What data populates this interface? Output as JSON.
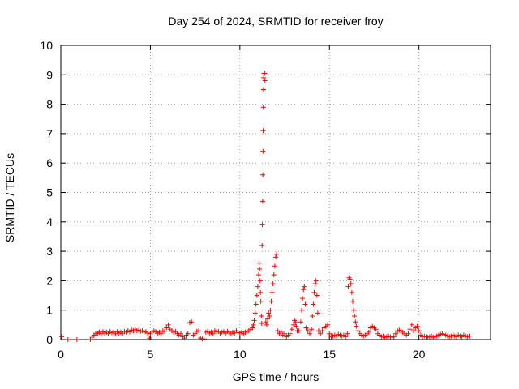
{
  "chart_data": {
    "type": "scatter",
    "title": "Day 254 of 2024, SRMTID for receiver froy",
    "xlabel": "GPS time / hours",
    "ylabel": "SRMTID / TECUs",
    "xlim": [
      0,
      24
    ],
    "ylim": [
      0,
      10
    ],
    "xticks": [
      0,
      5,
      10,
      15,
      20
    ],
    "yticks": [
      0,
      1,
      2,
      3,
      4,
      5,
      6,
      7,
      8,
      9,
      10
    ],
    "grid": true,
    "marker": "+",
    "color": "#ff0000",
    "series": [
      {
        "name": "SRMTID",
        "points": [
          [
            0.05,
            0.1
          ],
          [
            0.4,
            0.0
          ],
          [
            0.9,
            0.0
          ],
          [
            1.65,
            0.0
          ],
          [
            1.75,
            0.08
          ],
          [
            1.85,
            0.15
          ],
          [
            1.95,
            0.2
          ],
          [
            2.05,
            0.22
          ],
          [
            2.15,
            0.25
          ],
          [
            2.25,
            0.2
          ],
          [
            2.35,
            0.27
          ],
          [
            2.45,
            0.22
          ],
          [
            2.55,
            0.25
          ],
          [
            2.65,
            0.2
          ],
          [
            2.75,
            0.28
          ],
          [
            2.85,
            0.23
          ],
          [
            2.95,
            0.25
          ],
          [
            3.05,
            0.2
          ],
          [
            3.15,
            0.27
          ],
          [
            3.25,
            0.22
          ],
          [
            3.35,
            0.25
          ],
          [
            3.45,
            0.2
          ],
          [
            3.55,
            0.28
          ],
          [
            3.65,
            0.25
          ],
          [
            3.75,
            0.3
          ],
          [
            3.85,
            0.26
          ],
          [
            3.95,
            0.32
          ],
          [
            4.05,
            0.3
          ],
          [
            4.15,
            0.35
          ],
          [
            4.25,
            0.3
          ],
          [
            4.35,
            0.32
          ],
          [
            4.45,
            0.28
          ],
          [
            4.55,
            0.3
          ],
          [
            4.65,
            0.25
          ],
          [
            4.75,
            0.27
          ],
          [
            4.85,
            0.22
          ],
          [
            4.95,
            0.05
          ],
          [
            5.0,
            0.2
          ],
          [
            5.1,
            0.25
          ],
          [
            5.2,
            0.3
          ],
          [
            5.3,
            0.27
          ],
          [
            5.4,
            0.22
          ],
          [
            5.5,
            0.25
          ],
          [
            5.6,
            0.2
          ],
          [
            5.7,
            0.3
          ],
          [
            5.8,
            0.28
          ],
          [
            5.9,
            0.4
          ],
          [
            6.0,
            0.5
          ],
          [
            6.1,
            0.35
          ],
          [
            6.2,
            0.3
          ],
          [
            6.3,
            0.25
          ],
          [
            6.4,
            0.28
          ],
          [
            6.5,
            0.2
          ],
          [
            6.6,
            0.15
          ],
          [
            6.7,
            0.2
          ],
          [
            6.8,
            0.1
          ],
          [
            6.9,
            0.05
          ],
          [
            7.0,
            0.15
          ],
          [
            7.1,
            0.2
          ],
          [
            7.2,
            0.58
          ],
          [
            7.3,
            0.6
          ],
          [
            7.4,
            0.15
          ],
          [
            7.5,
            0.2
          ],
          [
            7.6,
            0.28
          ],
          [
            7.7,
            0.3
          ],
          [
            7.8,
            0.05
          ],
          [
            7.9,
            0.02
          ],
          [
            8.0,
            0.02
          ],
          [
            8.1,
            0.25
          ],
          [
            8.2,
            0.28
          ],
          [
            8.3,
            0.22
          ],
          [
            8.4,
            0.25
          ],
          [
            8.5,
            0.2
          ],
          [
            8.6,
            0.3
          ],
          [
            8.7,
            0.26
          ],
          [
            8.8,
            0.28
          ],
          [
            8.9,
            0.22
          ],
          [
            9.0,
            0.25
          ],
          [
            9.1,
            0.27
          ],
          [
            9.2,
            0.22
          ],
          [
            9.3,
            0.28
          ],
          [
            9.4,
            0.25
          ],
          [
            9.5,
            0.2
          ],
          [
            9.6,
            0.25
          ],
          [
            9.7,
            0.22
          ],
          [
            9.8,
            0.3
          ],
          [
            9.9,
            0.24
          ],
          [
            10.0,
            0.22
          ],
          [
            10.1,
            0.25
          ],
          [
            10.2,
            0.2
          ],
          [
            10.3,
            0.25
          ],
          [
            10.4,
            0.28
          ],
          [
            10.5,
            0.3
          ],
          [
            10.6,
            0.35
          ],
          [
            10.7,
            0.4
          ],
          [
            10.75,
            0.5
          ],
          [
            10.8,
            0.65
          ],
          [
            10.85,
            0.9
          ],
          [
            10.9,
            1.2
          ],
          [
            10.95,
            1.5
          ],
          [
            11.0,
            1.8
          ],
          [
            11.05,
            2.2
          ],
          [
            11.08,
            2.6
          ],
          [
            11.1,
            2.4
          ],
          [
            11.13,
            2.0
          ],
          [
            11.15,
            1.6
          ],
          [
            11.17,
            1.3
          ],
          [
            11.2,
            0.8
          ],
          [
            11.22,
            0.55
          ],
          [
            11.24,
            3.2
          ],
          [
            11.25,
            3.9
          ],
          [
            11.27,
            4.7
          ],
          [
            11.28,
            5.6
          ],
          [
            11.29,
            6.4
          ],
          [
            11.3,
            7.1
          ],
          [
            11.31,
            7.9
          ],
          [
            11.32,
            8.5
          ],
          [
            11.33,
            8.9
          ],
          [
            11.35,
            9.05
          ],
          [
            11.38,
            9.05
          ],
          [
            11.4,
            8.8
          ],
          [
            11.45,
            0.6
          ],
          [
            11.5,
            0.5
          ],
          [
            11.55,
            0.7
          ],
          [
            11.6,
            0.9
          ],
          [
            11.65,
            0.8
          ],
          [
            11.7,
            1.0
          ],
          [
            11.75,
            1.3
          ],
          [
            11.8,
            1.6
          ],
          [
            11.85,
            1.9
          ],
          [
            11.9,
            2.2
          ],
          [
            11.95,
            2.5
          ],
          [
            12.0,
            2.8
          ],
          [
            12.05,
            2.9
          ],
          [
            12.1,
            0.3
          ],
          [
            12.2,
            0.2
          ],
          [
            12.3,
            0.25
          ],
          [
            12.4,
            0.15
          ],
          [
            12.5,
            0.2
          ],
          [
            12.6,
            0.1
          ],
          [
            12.7,
            0.15
          ],
          [
            12.8,
            0.2
          ],
          [
            12.9,
            0.35
          ],
          [
            13.0,
            0.5
          ],
          [
            13.05,
            0.65
          ],
          [
            13.1,
            0.6
          ],
          [
            13.15,
            0.45
          ],
          [
            13.2,
            0.3
          ],
          [
            13.3,
            0.3
          ],
          [
            13.4,
            0.6
          ],
          [
            13.45,
            1.0
          ],
          [
            13.5,
            1.4
          ],
          [
            13.55,
            1.7
          ],
          [
            13.6,
            1.8
          ],
          [
            13.65,
            1.2
          ],
          [
            13.7,
            0.4
          ],
          [
            13.8,
            0.3
          ],
          [
            13.9,
            0.2
          ],
          [
            14.0,
            0.35
          ],
          [
            14.05,
            0.8
          ],
          [
            14.1,
            1.2
          ],
          [
            14.15,
            1.6
          ],
          [
            14.2,
            1.9
          ],
          [
            14.25,
            2.0
          ],
          [
            14.3,
            1.5
          ],
          [
            14.35,
            0.9
          ],
          [
            14.4,
            0.3
          ],
          [
            14.5,
            0.2
          ],
          [
            14.6,
            0.3
          ],
          [
            14.7,
            0.4
          ],
          [
            14.8,
            0.45
          ],
          [
            14.9,
            0.5
          ],
          [
            15.0,
            0.2
          ],
          [
            15.1,
            0.1
          ],
          [
            15.2,
            0.12
          ],
          [
            15.3,
            0.15
          ],
          [
            15.4,
            0.12
          ],
          [
            15.5,
            0.18
          ],
          [
            15.6,
            0.15
          ],
          [
            15.7,
            0.12
          ],
          [
            15.8,
            0.15
          ],
          [
            15.9,
            0.1
          ],
          [
            16.0,
            0.2
          ],
          [
            16.05,
            1.8
          ],
          [
            16.1,
            2.1
          ],
          [
            16.15,
            2.05
          ],
          [
            16.2,
            1.9
          ],
          [
            16.25,
            1.6
          ],
          [
            16.3,
            1.3
          ],
          [
            16.35,
            1.0
          ],
          [
            16.4,
            0.8
          ],
          [
            16.45,
            0.6
          ],
          [
            16.5,
            0.45
          ],
          [
            16.6,
            0.3
          ],
          [
            16.7,
            0.2
          ],
          [
            16.8,
            0.15
          ],
          [
            16.9,
            0.12
          ],
          [
            17.0,
            0.15
          ],
          [
            17.1,
            0.2
          ],
          [
            17.2,
            0.25
          ],
          [
            17.3,
            0.4
          ],
          [
            17.4,
            0.45
          ],
          [
            17.5,
            0.4
          ],
          [
            17.6,
            0.35
          ],
          [
            17.7,
            0.2
          ],
          [
            17.8,
            0.15
          ],
          [
            17.9,
            0.1
          ],
          [
            18.0,
            0.12
          ],
          [
            18.1,
            0.08
          ],
          [
            18.2,
            0.1
          ],
          [
            18.3,
            0.12
          ],
          [
            18.4,
            0.1
          ],
          [
            18.5,
            0.08
          ],
          [
            18.6,
            0.1
          ],
          [
            18.7,
            0.2
          ],
          [
            18.8,
            0.3
          ],
          [
            18.9,
            0.32
          ],
          [
            19.0,
            0.3
          ],
          [
            19.1,
            0.25
          ],
          [
            19.2,
            0.2
          ],
          [
            19.3,
            0.15
          ],
          [
            19.4,
            0.2
          ],
          [
            19.5,
            0.35
          ],
          [
            19.6,
            0.5
          ],
          [
            19.7,
            0.3
          ],
          [
            19.8,
            0.4
          ],
          [
            19.9,
            0.45
          ],
          [
            20.0,
            0.3
          ],
          [
            20.1,
            0.15
          ],
          [
            20.2,
            0.1
          ],
          [
            20.3,
            0.12
          ],
          [
            20.4,
            0.1
          ],
          [
            20.5,
            0.08
          ],
          [
            20.6,
            0.1
          ],
          [
            20.7,
            0.12
          ],
          [
            20.8,
            0.08
          ],
          [
            20.9,
            0.1
          ],
          [
            21.0,
            0.12
          ],
          [
            21.1,
            0.15
          ],
          [
            21.2,
            0.18
          ],
          [
            21.3,
            0.2
          ],
          [
            21.4,
            0.18
          ],
          [
            21.5,
            0.15
          ],
          [
            21.6,
            0.12
          ],
          [
            21.7,
            0.1
          ],
          [
            21.8,
            0.12
          ],
          [
            21.9,
            0.15
          ],
          [
            22.0,
            0.12
          ],
          [
            22.1,
            0.1
          ],
          [
            22.2,
            0.15
          ],
          [
            22.3,
            0.12
          ],
          [
            22.4,
            0.1
          ],
          [
            22.5,
            0.15
          ],
          [
            22.6,
            0.12
          ],
          [
            22.7,
            0.1
          ],
          [
            22.8,
            0.12
          ]
        ]
      }
    ]
  }
}
